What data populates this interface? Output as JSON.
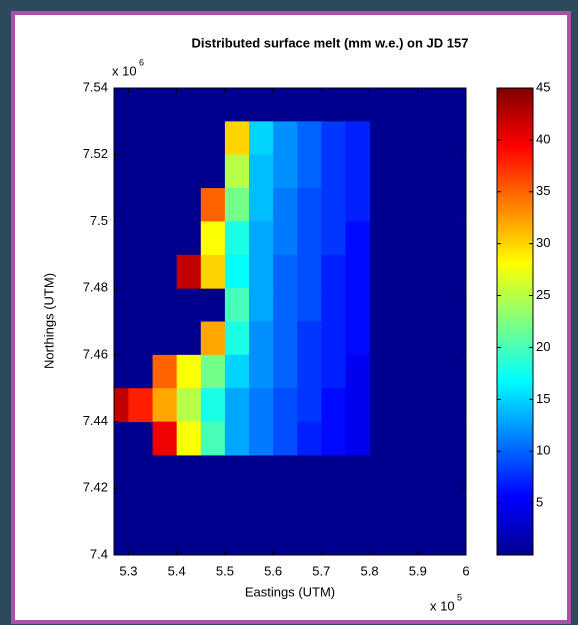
{
  "chart_data": {
    "type": "heatmap",
    "title": "Distributed surface melt (mm w.e.) on JD 157",
    "xlabel": "Eastings (UTM)",
    "ylabel": "Northings (UTM)",
    "x_multiplier": {
      "base": "x 10",
      "exponent": "5"
    },
    "y_multiplier": {
      "base": "x 10",
      "exponent": "6"
    },
    "x": [
      5.275,
      5.325,
      5.375,
      5.425,
      5.475,
      5.525,
      5.575,
      5.625,
      5.675,
      5.725,
      5.775,
      5.825,
      5.875,
      5.925,
      5.975
    ],
    "y": [
      7.535,
      7.525,
      7.515,
      7.505,
      7.495,
      7.485,
      7.475,
      7.465,
      7.455,
      7.445,
      7.435,
      7.425,
      7.415,
      7.405
    ],
    "z": [
      [
        null,
        null,
        null,
        null,
        null,
        null,
        null,
        null,
        null,
        null,
        null,
        null,
        null,
        null,
        null
      ],
      [
        null,
        null,
        null,
        null,
        null,
        30,
        15,
        12,
        10,
        8,
        7,
        null,
        null,
        null,
        null
      ],
      [
        null,
        null,
        null,
        null,
        null,
        25,
        14,
        12,
        10,
        8,
        7,
        null,
        null,
        null,
        null
      ],
      [
        null,
        null,
        null,
        null,
        35,
        22,
        14,
        11,
        9,
        8,
        7,
        null,
        null,
        null,
        null
      ],
      [
        null,
        null,
        null,
        null,
        28,
        18,
        13,
        11,
        9,
        8,
        6,
        null,
        null,
        null,
        null
      ],
      [
        null,
        null,
        null,
        42,
        30,
        17,
        13,
        10,
        9,
        7,
        6,
        null,
        null,
        null,
        null
      ],
      [
        null,
        null,
        null,
        null,
        null,
        20,
        13,
        10,
        9,
        7,
        6,
        null,
        null,
        null,
        null
      ],
      [
        null,
        null,
        null,
        null,
        32,
        18,
        12,
        10,
        8,
        7,
        6,
        null,
        null,
        null,
        null
      ],
      [
        null,
        null,
        35,
        28,
        22,
        15,
        12,
        10,
        8,
        7,
        5,
        null,
        null,
        null,
        null
      ],
      [
        42,
        38,
        32,
        25,
        18,
        13,
        11,
        9,
        8,
        6,
        5,
        null,
        null,
        null,
        null
      ],
      [
        null,
        null,
        40,
        28,
        20,
        13,
        11,
        9,
        7,
        6,
        5,
        null,
        null,
        null,
        null
      ],
      [
        null,
        null,
        null,
        null,
        null,
        null,
        null,
        null,
        null,
        null,
        null,
        null,
        null,
        null,
        null
      ],
      [
        null,
        null,
        null,
        null,
        null,
        null,
        null,
        null,
        null,
        null,
        null,
        null,
        null,
        null,
        null
      ],
      [
        null,
        null,
        null,
        null,
        null,
        null,
        null,
        null,
        null,
        null,
        null,
        null,
        null,
        null,
        null
      ]
    ],
    "cell_size": [
      0.05,
      0.01
    ],
    "colormap": "jet",
    "clim": [
      0,
      45
    ],
    "cticks": [
      5,
      10,
      15,
      20,
      25,
      30,
      35,
      40,
      45
    ],
    "xlim": [
      5.27,
      6.0
    ],
    "ylim": [
      7.4,
      7.54
    ],
    "xticks": [
      5.3,
      5.4,
      5.5,
      5.6,
      5.7,
      5.8,
      5.9,
      6
    ],
    "yticks": [
      7.4,
      7.42,
      7.44,
      7.46,
      7.48,
      7.5,
      7.52,
      7.54
    ]
  }
}
